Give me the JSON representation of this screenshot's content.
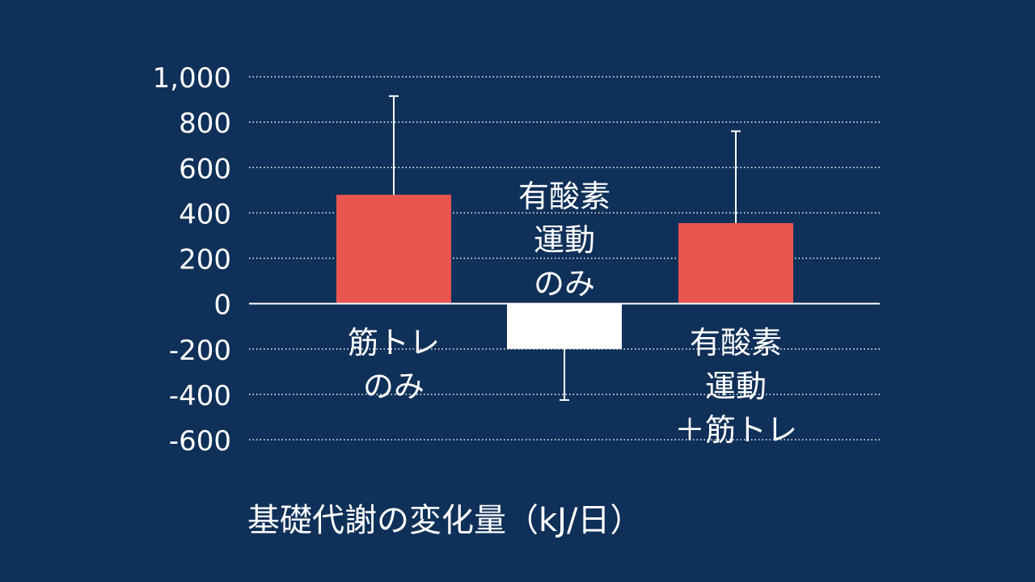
{
  "caption": "基礎代謝の変化量（kJ/日）",
  "chart_data": {
    "type": "bar",
    "title": "",
    "xlabel": "",
    "ylabel": "",
    "ylim": [
      -600,
      1000
    ],
    "yticks": [
      1000,
      800,
      600,
      400,
      200,
      0,
      -200,
      -400,
      -600
    ],
    "ytick_labels": [
      "1,000",
      "800",
      "600",
      "400",
      "200",
      "0",
      "-200",
      "-400",
      "-600"
    ],
    "grid": "dotted horizontal",
    "categories": [
      [
        "筋トレ",
        "のみ"
      ],
      [
        "有酸素",
        "運動",
        "のみ"
      ],
      [
        "有酸素",
        "運動",
        "＋筋トレ"
      ]
    ],
    "values": [
      480,
      -200,
      355
    ],
    "error_bars": [
      915,
      -425,
      760
    ],
    "colors": {
      "background": "#0f3058",
      "bars": [
        "#e8554e",
        "#ffffff",
        "#e8554e"
      ],
      "text": "#ffffff",
      "grid": "#ffffff"
    }
  }
}
